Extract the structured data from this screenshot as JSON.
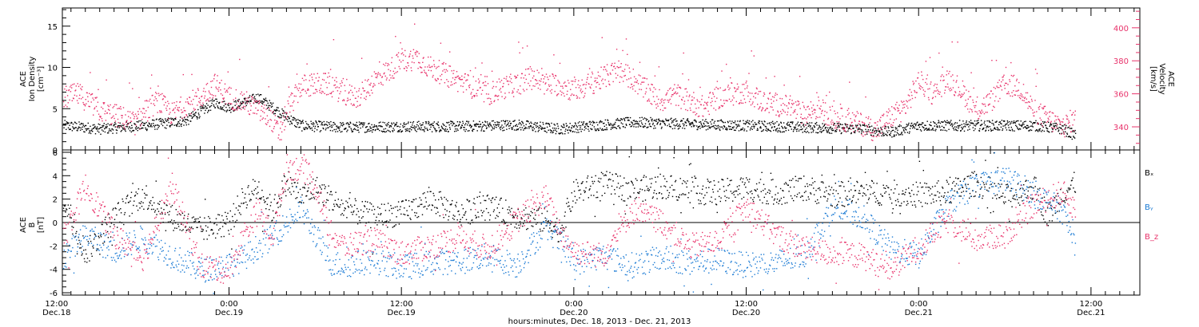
{
  "colors": {
    "black": "#000000",
    "pink": "#e8336b",
    "blue": "#1a7ad4",
    "axis": "#000000",
    "right_axis": "#e8336b"
  },
  "x_axis_title": "hours:minutes, Dec. 18, 2013 - Dec. 21, 2013",
  "x_ticks": [
    {
      "hour": 12,
      "time": "12:00",
      "date": "Dec.18"
    },
    {
      "hour": 24,
      "time": "0:00",
      "date": "Dec.19"
    },
    {
      "hour": 36,
      "time": "12:00",
      "date": "Dec.19"
    },
    {
      "hour": 48,
      "time": "0:00",
      "date": "Dec.20"
    },
    {
      "hour": 60,
      "time": "12:00",
      "date": "Dec.20"
    },
    {
      "hour": 72,
      "time": "0:00",
      "date": "Dec.21"
    },
    {
      "hour": 84,
      "time": "12:00",
      "date": "Dec.21"
    }
  ],
  "chart_data": [
    {
      "type": "scatter",
      "title": "",
      "x_unit": "hours since 2013-12-18 00:00",
      "xlim": [
        12.4,
        87.4
      ],
      "left_axis": {
        "label_lines": [
          "ACE",
          "Ion Density",
          "[cm⁻³]"
        ],
        "ylim": [
          0,
          17.2
        ],
        "ticks": [
          0,
          5,
          10,
          15
        ]
      },
      "right_axis": {
        "label_lines": [
          "ACE",
          "Velocity",
          "[km/s]"
        ],
        "ylim": [
          326,
          412
        ],
        "ticks": [
          340,
          360,
          380,
          400
        ]
      },
      "series": [
        {
          "name": "Ion Density",
          "axis": "left",
          "color": "black",
          "points": [
            [
              12.5,
              3.0
            ],
            [
              15,
              2.6
            ],
            [
              18,
              3.0
            ],
            [
              21,
              3.6
            ],
            [
              23,
              5.8
            ],
            [
              24,
              5.2
            ],
            [
              25,
              5.8
            ],
            [
              26,
              6.4
            ],
            [
              27,
              5.2
            ],
            [
              28,
              4.0
            ],
            [
              29,
              3.0
            ],
            [
              32,
              2.8
            ],
            [
              36,
              2.9
            ],
            [
              40,
              2.9
            ],
            [
              44,
              3.1
            ],
            [
              47,
              2.6
            ],
            [
              48,
              2.8
            ],
            [
              52,
              3.4
            ],
            [
              56,
              3.2
            ],
            [
              60,
              3.0
            ],
            [
              64,
              2.8
            ],
            [
              68,
              2.6
            ],
            [
              70,
              2.2
            ],
            [
              72,
              3.0
            ],
            [
              76,
              3.0
            ],
            [
              80,
              3.0
            ],
            [
              82,
              2.6
            ],
            [
              83,
              1.7
            ]
          ]
        },
        {
          "name": "Velocity",
          "axis": "right",
          "color": "pink",
          "points": [
            [
              12.5,
              358
            ],
            [
              13.5,
              360
            ],
            [
              15,
              350
            ],
            [
              16.5,
              346
            ],
            [
              17.5,
              342
            ],
            [
              18,
              348
            ],
            [
              19,
              356
            ],
            [
              20,
              348
            ],
            [
              21,
              354
            ],
            [
              22,
              358
            ],
            [
              23,
              366
            ],
            [
              24,
              358
            ],
            [
              25,
              356
            ],
            [
              26,
              350
            ],
            [
              27,
              344
            ],
            [
              27.5,
              335
            ],
            [
              28,
              350
            ],
            [
              29,
              365
            ],
            [
              30,
              366
            ],
            [
              31,
              366
            ],
            [
              32,
              360
            ],
            [
              33,
              358
            ],
            [
              34,
              368
            ],
            [
              35,
              374
            ],
            [
              36,
              380
            ],
            [
              37,
              382
            ],
            [
              38,
              376
            ],
            [
              39,
              372
            ],
            [
              40,
              368
            ],
            [
              41,
              364
            ],
            [
              42,
              360
            ],
            [
              43,
              364
            ],
            [
              44,
              366
            ],
            [
              45,
              370
            ],
            [
              46,
              366
            ],
            [
              47,
              366
            ],
            [
              48,
              362
            ],
            [
              49,
              366
            ],
            [
              50,
              370
            ],
            [
              51,
              374
            ],
            [
              52,
              370
            ],
            [
              53,
              362
            ],
            [
              54,
              356
            ],
            [
              55,
              360
            ],
            [
              56,
              356
            ],
            [
              57,
              352
            ],
            [
              58,
              358
            ],
            [
              59,
              360
            ],
            [
              60,
              362
            ],
            [
              61,
              356
            ],
            [
              62,
              354
            ],
            [
              63,
              352
            ],
            [
              64,
              348
            ],
            [
              65,
              352
            ],
            [
              66,
              346
            ],
            [
              67,
              344
            ],
            [
              68,
              342
            ],
            [
              69,
              338
            ],
            [
              70,
              346
            ],
            [
              71,
              352
            ],
            [
              72,
              368
            ],
            [
              73,
              360
            ],
            [
              74,
              370
            ],
            [
              75,
              362
            ],
            [
              76,
              350
            ],
            [
              77,
              356
            ],
            [
              78,
              366
            ],
            [
              79,
              364
            ],
            [
              80,
              350
            ],
            [
              81,
              345
            ],
            [
              82,
              340
            ],
            [
              82.6,
              344
            ]
          ]
        }
      ]
    },
    {
      "type": "scatter",
      "title": "",
      "x_unit": "hours since 2013-12-18 00:00",
      "xlim": [
        12.4,
        87.4
      ],
      "left_axis": {
        "label_lines": [
          "ACE",
          "B",
          "[nT]"
        ],
        "ylim": [
          -6.2,
          6.2
        ],
        "ticks": [
          -6,
          -4,
          -2,
          0,
          2,
          4,
          6
        ]
      },
      "zero_line": true,
      "series": [
        {
          "name": "Bₓ",
          "color": "black",
          "points": [
            [
              12.5,
              2.0
            ],
            [
              14,
              -2.6
            ],
            [
              16,
              0.5
            ],
            [
              18,
              2.5
            ],
            [
              20,
              0.5
            ],
            [
              22,
              -0.6
            ],
            [
              24,
              0.0
            ],
            [
              25,
              2.2
            ],
            [
              26,
              3.0
            ],
            [
              27,
              1.0
            ],
            [
              28,
              3.6
            ],
            [
              29,
              2.2
            ],
            [
              30,
              3.0
            ],
            [
              32,
              1.2
            ],
            [
              34,
              0.6
            ],
            [
              36,
              0.8
            ],
            [
              38,
              2.0
            ],
            [
              40,
              0.8
            ],
            [
              42,
              1.4
            ],
            [
              44,
              0.6
            ],
            [
              46,
              0.2
            ],
            [
              47,
              -0.6
            ],
            [
              48,
              2.6
            ],
            [
              50,
              3.4
            ],
            [
              52,
              2.8
            ],
            [
              54,
              3.2
            ],
            [
              56,
              2.8
            ],
            [
              58,
              2.6
            ],
            [
              60,
              3.0
            ],
            [
              62,
              2.6
            ],
            [
              64,
              3.0
            ],
            [
              66,
              2.4
            ],
            [
              68,
              2.6
            ],
            [
              70,
              2.6
            ],
            [
              72,
              2.4
            ],
            [
              74,
              2.6
            ],
            [
              76,
              3.4
            ],
            [
              78,
              2.2
            ],
            [
              80,
              3.0
            ],
            [
              81,
              0.6
            ],
            [
              82,
              2.6
            ],
            [
              83,
              3.4
            ]
          ]
        },
        {
          "name": "Bᵧ",
          "color": "blue",
          "points": [
            [
              12.5,
              -3.0
            ],
            [
              14,
              -1.0
            ],
            [
              16,
              -2.4
            ],
            [
              18,
              -1.2
            ],
            [
              20,
              -2.8
            ],
            [
              22,
              -4.0
            ],
            [
              24,
              -3.6
            ],
            [
              25,
              -3.0
            ],
            [
              26,
              -2.0
            ],
            [
              27,
              -1.2
            ],
            [
              28,
              0.0
            ],
            [
              29,
              1.2
            ],
            [
              30,
              -1.0
            ],
            [
              31,
              -3.4
            ],
            [
              32,
              -3.6
            ],
            [
              34,
              -3.2
            ],
            [
              36,
              -3.8
            ],
            [
              38,
              -3.4
            ],
            [
              40,
              -3.2
            ],
            [
              42,
              -2.8
            ],
            [
              44,
              -3.6
            ],
            [
              46,
              -0.4
            ],
            [
              47,
              -1.6
            ],
            [
              48,
              -3.4
            ],
            [
              50,
              -2.8
            ],
            [
              52,
              -3.6
            ],
            [
              54,
              -3.0
            ],
            [
              56,
              -3.4
            ],
            [
              58,
              -3.2
            ],
            [
              60,
              -3.6
            ],
            [
              62,
              -3.4
            ],
            [
              64,
              -2.8
            ],
            [
              66,
              1.4
            ],
            [
              68,
              0.6
            ],
            [
              70,
              -2.2
            ],
            [
              72,
              -2.8
            ],
            [
              74,
              1.6
            ],
            [
              76,
              3.2
            ],
            [
              78,
              3.8
            ],
            [
              80,
              2.6
            ],
            [
              82,
              1.0
            ],
            [
              83,
              -2.2
            ]
          ]
        },
        {
          "name": "B_z",
          "color": "pink",
          "points": [
            [
              12.5,
              -1.2
            ],
            [
              14,
              3.2
            ],
            [
              16,
              -1.0
            ],
            [
              18,
              -3.0
            ],
            [
              20,
              3.2
            ],
            [
              22,
              -3.6
            ],
            [
              24,
              -4.2
            ],
            [
              25,
              -1.0
            ],
            [
              26,
              1.0
            ],
            [
              27,
              -1.2
            ],
            [
              28,
              4.8
            ],
            [
              29,
              4.6
            ],
            [
              30,
              3.2
            ],
            [
              31,
              -0.8
            ],
            [
              32,
              -2.0
            ],
            [
              34,
              -1.4
            ],
            [
              36,
              -2.6
            ],
            [
              38,
              -2.0
            ],
            [
              40,
              -1.2
            ],
            [
              42,
              -2.2
            ],
            [
              44,
              0.2
            ],
            [
              46,
              2.2
            ],
            [
              47,
              -0.6
            ],
            [
              48,
              -2.4
            ],
            [
              50,
              -2.8
            ],
            [
              52,
              1.0
            ],
            [
              54,
              0.2
            ],
            [
              56,
              -2.0
            ],
            [
              58,
              -1.6
            ],
            [
              60,
              1.4
            ],
            [
              62,
              -1.0
            ],
            [
              64,
              -2.2
            ],
            [
              66,
              -2.6
            ],
            [
              68,
              -2.8
            ],
            [
              70,
              -4.0
            ],
            [
              72,
              -2.0
            ],
            [
              74,
              0.2
            ],
            [
              76,
              -1.4
            ],
            [
              78,
              -1.0
            ],
            [
              80,
              1.6
            ],
            [
              82,
              2.6
            ],
            [
              83,
              1.0
            ]
          ]
        }
      ]
    }
  ]
}
